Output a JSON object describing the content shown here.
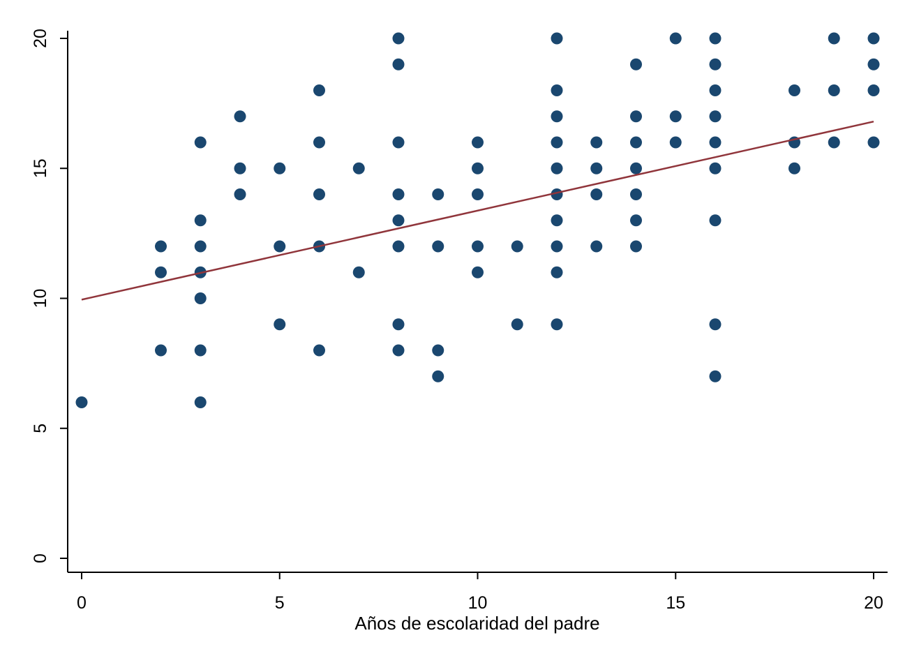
{
  "chart_data": {
    "type": "scatter",
    "title": "",
    "xlabel": "Años de escolaridad del padre",
    "ylabel": "",
    "xlim": [
      0,
      20
    ],
    "ylim": [
      0,
      20
    ],
    "xticks": [
      0,
      5,
      10,
      15,
      20
    ],
    "yticks": [
      0,
      5,
      10,
      15,
      20
    ],
    "grid": false,
    "colors": {
      "points": "#1a476f",
      "fit_line": "#90353b"
    },
    "series": [
      {
        "type": "scatter",
        "points": [
          [
            0,
            6
          ],
          [
            2,
            8
          ],
          [
            2,
            11
          ],
          [
            2,
            12
          ],
          [
            3,
            6
          ],
          [
            3,
            8
          ],
          [
            3,
            10
          ],
          [
            3,
            11
          ],
          [
            3,
            12
          ],
          [
            3,
            13
          ],
          [
            3,
            16
          ],
          [
            4,
            14
          ],
          [
            4,
            15
          ],
          [
            4,
            17
          ],
          [
            5,
            9
          ],
          [
            5,
            12
          ],
          [
            5,
            15
          ],
          [
            6,
            8
          ],
          [
            6,
            12
          ],
          [
            6,
            14
          ],
          [
            6,
            16
          ],
          [
            6,
            18
          ],
          [
            7,
            11
          ],
          [
            7,
            15
          ],
          [
            8,
            8
          ],
          [
            8,
            9
          ],
          [
            8,
            12
          ],
          [
            8,
            13
          ],
          [
            8,
            14
          ],
          [
            8,
            16
          ],
          [
            8,
            19
          ],
          [
            8,
            20
          ],
          [
            9,
            7
          ],
          [
            9,
            8
          ],
          [
            9,
            12
          ],
          [
            9,
            14
          ],
          [
            10,
            11
          ],
          [
            10,
            12
          ],
          [
            10,
            14
          ],
          [
            10,
            15
          ],
          [
            10,
            16
          ],
          [
            11,
            9
          ],
          [
            11,
            12
          ],
          [
            12,
            9
          ],
          [
            12,
            11
          ],
          [
            12,
            12
          ],
          [
            12,
            13
          ],
          [
            12,
            14
          ],
          [
            12,
            15
          ],
          [
            12,
            16
          ],
          [
            12,
            17
          ],
          [
            12,
            18
          ],
          [
            12,
            20
          ],
          [
            13,
            12
          ],
          [
            13,
            14
          ],
          [
            13,
            15
          ],
          [
            13,
            16
          ],
          [
            14,
            12
          ],
          [
            14,
            13
          ],
          [
            14,
            14
          ],
          [
            14,
            15
          ],
          [
            14,
            16
          ],
          [
            14,
            17
          ],
          [
            14,
            19
          ],
          [
            15,
            16
          ],
          [
            15,
            17
          ],
          [
            15,
            20
          ],
          [
            16,
            7
          ],
          [
            16,
            9
          ],
          [
            16,
            13
          ],
          [
            16,
            15
          ],
          [
            16,
            16
          ],
          [
            16,
            17
          ],
          [
            16,
            18
          ],
          [
            16,
            19
          ],
          [
            16,
            20
          ],
          [
            18,
            15
          ],
          [
            18,
            16
          ],
          [
            18,
            18
          ],
          [
            19,
            16
          ],
          [
            19,
            18
          ],
          [
            19,
            20
          ],
          [
            20,
            16
          ],
          [
            20,
            18
          ],
          [
            20,
            19
          ],
          [
            20,
            20
          ]
        ]
      },
      {
        "type": "line",
        "x": [
          0,
          20
        ],
        "y": [
          9.95,
          16.8
        ]
      }
    ]
  }
}
